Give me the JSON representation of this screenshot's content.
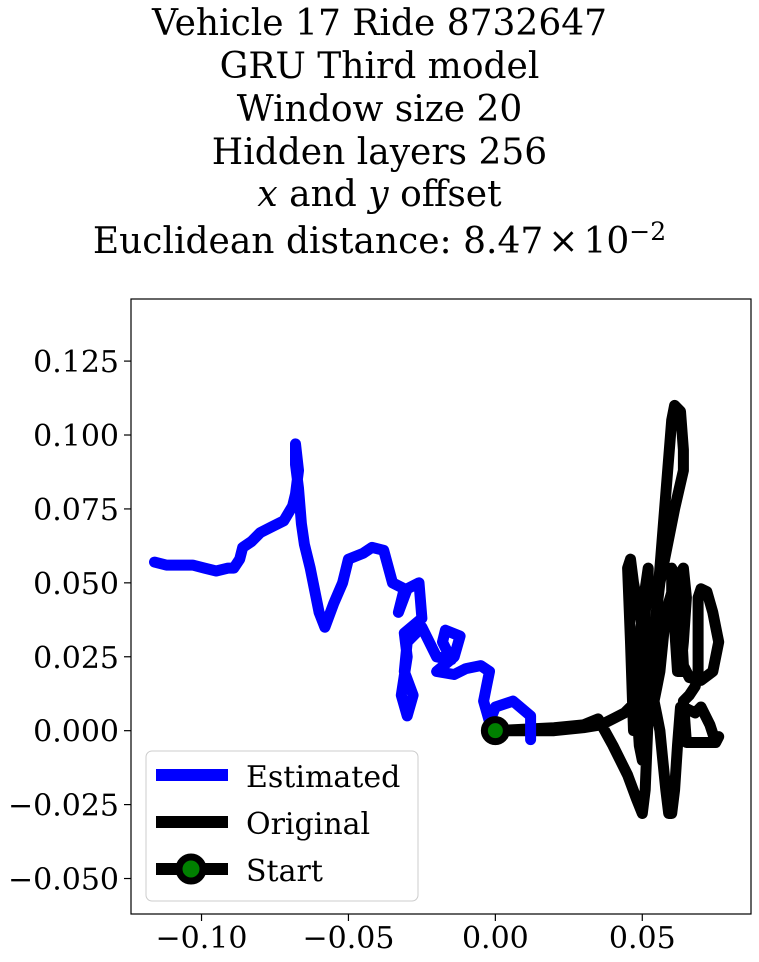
{
  "chart_data": {
    "type": "line",
    "title_lines": [
      "Vehicle 17 Ride 8732647",
      "GRU Third model",
      "Window size 20",
      "Hidden layers 256"
    ],
    "title_offset_line": {
      "var1": "x",
      "mid": " and ",
      "var2": "y",
      "end": " offset"
    },
    "title_distance": {
      "prefix": "Euclidean distance: ",
      "mantissa": "8.47",
      "times": "×",
      "base": "10",
      "exponent": "−2"
    },
    "xlim": [
      -0.124,
      0.087
    ],
    "ylim": [
      -0.062,
      0.146
    ],
    "xticks": [
      -0.1,
      -0.05,
      0.0,
      0.05
    ],
    "xtick_labels": [
      "−0.10",
      "−0.05",
      "0.00",
      "0.05"
    ],
    "yticks": [
      -0.05,
      -0.025,
      0.0,
      0.025,
      0.05,
      0.075,
      0.1,
      0.125
    ],
    "ytick_labels": [
      "−0.050",
      "−0.025",
      "0.000",
      "0.025",
      "0.050",
      "0.075",
      "0.100",
      "0.125"
    ],
    "grid": false,
    "legend": {
      "placement": "lower-left",
      "entries": [
        "Estimated",
        "Original",
        "Start"
      ]
    },
    "series": [
      {
        "name": "Estimated",
        "color": "#0000ff",
        "x": [
          0.012,
          0.012,
          0.006,
          0.0,
          -0.002,
          -0.004,
          -0.003,
          -0.002,
          -0.005,
          -0.01,
          -0.014,
          -0.02,
          -0.014,
          -0.012,
          -0.017,
          -0.018,
          -0.015,
          -0.02,
          -0.025,
          -0.03,
          -0.031,
          -0.028,
          -0.03,
          -0.032,
          -0.03,
          -0.031,
          -0.025,
          -0.026,
          -0.03,
          -0.033,
          -0.031,
          -0.035,
          -0.038,
          -0.042,
          -0.045,
          -0.05,
          -0.052,
          -0.055,
          -0.058,
          -0.06,
          -0.063,
          -0.065,
          -0.066,
          -0.067,
          -0.068,
          -0.068,
          -0.067,
          -0.068,
          -0.069,
          -0.072,
          -0.076,
          -0.08,
          -0.083,
          -0.086,
          -0.087,
          -0.089,
          -0.091,
          -0.095,
          -0.099,
          -0.103,
          -0.107,
          -0.112,
          -0.116
        ],
        "y": [
          -0.003,
          0.005,
          0.01,
          0.008,
          0.003,
          0.01,
          0.015,
          0.02,
          0.022,
          0.021,
          0.019,
          0.02,
          0.025,
          0.032,
          0.034,
          0.03,
          0.024,
          0.025,
          0.035,
          0.03,
          0.02,
          0.012,
          0.005,
          0.012,
          0.025,
          0.033,
          0.038,
          0.05,
          0.048,
          0.04,
          0.048,
          0.05,
          0.061,
          0.062,
          0.06,
          0.058,
          0.05,
          0.043,
          0.035,
          0.04,
          0.055,
          0.063,
          0.07,
          0.082,
          0.09,
          0.097,
          0.088,
          0.08,
          0.076,
          0.071,
          0.069,
          0.067,
          0.064,
          0.062,
          0.058,
          0.055,
          0.055,
          0.054,
          0.055,
          0.056,
          0.056,
          0.056,
          0.057
        ]
      },
      {
        "name": "Original",
        "color": "#000000",
        "x": [
          0.0,
          0.02,
          0.03,
          0.035,
          0.04,
          0.045,
          0.048,
          0.05,
          0.051,
          0.052,
          0.054,
          0.056,
          0.058,
          0.06,
          0.061,
          0.063,
          0.064,
          0.064,
          0.061,
          0.056,
          0.053,
          0.051,
          0.05,
          0.049,
          0.048,
          0.049,
          0.051,
          0.052,
          0.052,
          0.051,
          0.05,
          0.049,
          0.048,
          0.047,
          0.046,
          0.045,
          0.046,
          0.047,
          0.049,
          0.051,
          0.052,
          0.054,
          0.055,
          0.056,
          0.057,
          0.058,
          0.059,
          0.06,
          0.061,
          0.062,
          0.063,
          0.064,
          0.066,
          0.068,
          0.07,
          0.073,
          0.075,
          0.076,
          0.075,
          0.072,
          0.068,
          0.065,
          0.064,
          0.066,
          0.068,
          0.069,
          0.069,
          0.069,
          0.07,
          0.072,
          0.074,
          0.076,
          0.074,
          0.07,
          0.066,
          0.064,
          0.063,
          0.062,
          0.06,
          0.06,
          0.061,
          0.062,
          0.063,
          0.064,
          0.065,
          0.064,
          0.061,
          0.058,
          0.056,
          0.055,
          0.054,
          0.053,
          0.052,
          0.05,
          0.048,
          0.046,
          0.044,
          0.04,
          0.036,
          0.03,
          0.02,
          0.0
        ],
        "y": [
          0.0,
          0.001,
          0.002,
          0.004,
          -0.005,
          -0.015,
          -0.023,
          -0.028,
          -0.02,
          0.005,
          0.03,
          0.055,
          0.08,
          0.105,
          0.11,
          0.108,
          0.095,
          0.088,
          0.075,
          0.05,
          0.025,
          0.005,
          -0.01,
          -0.005,
          0.01,
          0.03,
          0.048,
          0.055,
          0.05,
          0.04,
          0.03,
          0.02,
          0.01,
          0.0,
          0.03,
          0.055,
          0.058,
          0.05,
          0.04,
          0.03,
          0.02,
          0.01,
          0.005,
          0.0,
          -0.01,
          -0.02,
          -0.028,
          -0.028,
          -0.02,
          -0.005,
          0.008,
          0.008,
          0.007,
          0.006,
          0.008,
          0.002,
          -0.004,
          -0.002,
          -0.004,
          -0.004,
          -0.004,
          -0.004,
          0.01,
          0.012,
          0.015,
          0.02,
          0.035,
          0.045,
          0.048,
          0.047,
          0.04,
          0.03,
          0.02,
          0.017,
          0.018,
          0.022,
          0.04,
          0.05,
          0.055,
          0.045,
          0.035,
          0.02,
          0.02,
          0.03,
          0.045,
          0.055,
          0.05,
          0.04,
          0.02,
          0.015,
          0.01,
          0.008,
          0.01,
          0.015,
          0.01,
          0.008,
          0.006,
          0.004,
          0.002,
          0.001,
          0.0,
          0.0
        ]
      },
      {
        "name": "Start",
        "color": "#000000",
        "marker_fill": "#008000",
        "x": [
          0.0
        ],
        "y": [
          0.0
        ]
      }
    ]
  }
}
